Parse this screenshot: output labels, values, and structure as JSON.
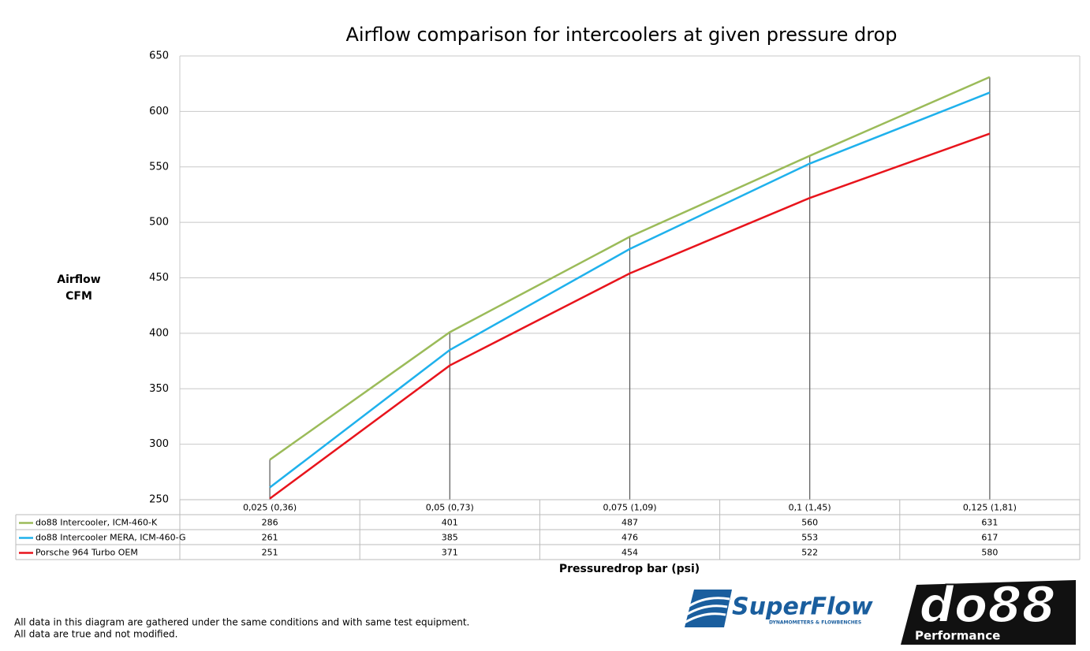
{
  "chart_data": {
    "type": "line",
    "title": "Airflow comparison for intercoolers at given pressure drop",
    "y_label": [
      "Airflow",
      "CFM"
    ],
    "x_label": "Pressuredrop bar (psi)",
    "categories": [
      "0,025 (0,36)",
      "0,05 (0,73)",
      "0,075 (1,09)",
      "0,1 (1,45)",
      "0,125 (1,81)"
    ],
    "series": [
      {
        "name": "do88 Intercooler, ICM-460-K",
        "color": "#9bbb59",
        "values": [
          286,
          401,
          487,
          560,
          631
        ]
      },
      {
        "name": "do88 Intercooler MERA, ICM-460-G",
        "color": "#1fb1ec",
        "values": [
          261,
          385,
          476,
          553,
          617
        ]
      },
      {
        "name": "Porsche 964 Turbo OEM",
        "color": "#e8141c",
        "values": [
          251,
          371,
          454,
          522,
          580
        ]
      }
    ],
    "ylim": [
      250,
      650
    ],
    "yticks": [
      250,
      300,
      350,
      400,
      450,
      500,
      550,
      600,
      650
    ],
    "grid": true,
    "drop_lines": true,
    "data_table": true
  },
  "footnote": [
    "All data in this diagram are gathered under the same conditions and with same test equipment.",
    "All data are true and not modified."
  ],
  "logos": {
    "superflow": "SuperFlow",
    "superflow_tagline": "DYNAMOMETERS & FLOWBENCHES",
    "do88": "do88",
    "do88_tagline": "Performance"
  }
}
